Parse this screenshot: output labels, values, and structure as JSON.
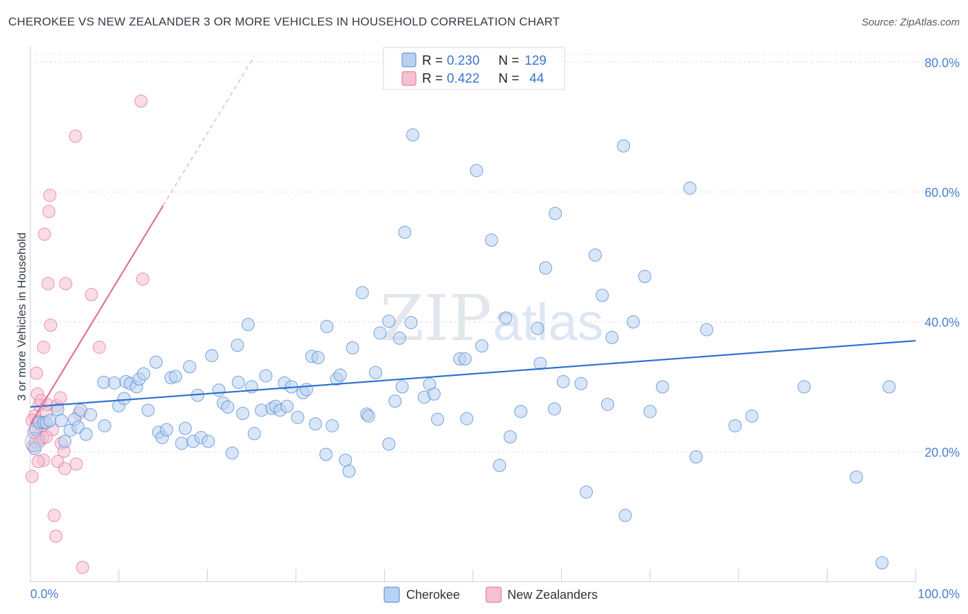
{
  "title": "CHEROKEE VS NEW ZEALANDER 3 OR MORE VEHICLES IN HOUSEHOLD CORRELATION CHART",
  "source": "Source: ZipAtlas.com",
  "watermark": {
    "zip": "ZIP",
    "atlas": "atlas"
  },
  "colors": {
    "blue": "#4a84d4",
    "blue_fill": "#b9d1f0",
    "pink": "#e0709a",
    "pink_fill": "#f5c0d2",
    "grid": "#d8dde3"
  },
  "legend": {
    "row1": {
      "r_label": "R =",
      "r_value": "0.230",
      "n_label": "N =",
      "n_value": "129"
    },
    "row2": {
      "r_label": "R =",
      "r_value": "0.422",
      "n_label": "N =",
      "n_value": "44"
    }
  },
  "bottom_legend": {
    "series1": "Cherokee",
    "series2": "New Zealanders"
  },
  "chart_data": {
    "type": "scatter",
    "title": "CHEROKEE VS NEW ZEALANDER 3 OR MORE VEHICLES IN HOUSEHOLD CORRELATION CHART",
    "xlabel": "",
    "ylabel": "3 or more Vehicles in Household",
    "xlim": [
      0,
      100
    ],
    "ylim": [
      0,
      83
    ],
    "x_tick_labels": [
      "0.0%",
      "100.0%"
    ],
    "y_ticks": [
      20,
      40,
      60,
      80
    ],
    "y_tick_labels": [
      "20.0%",
      "40.0%",
      "60.0%",
      "80.0%"
    ],
    "series": [
      {
        "name": "Cherokee",
        "color": "#4a84d4",
        "trend": {
          "x": [
            0,
            100
          ],
          "y": [
            26.9,
            37.1
          ]
        },
        "points": [
          [
            0.5,
            20.5
          ],
          [
            0.6,
            23.5
          ],
          [
            1.0,
            24.5
          ],
          [
            1.5,
            24.5
          ],
          [
            1.8,
            24.5
          ],
          [
            2.2,
            24.8
          ],
          [
            3.1,
            26.5
          ],
          [
            3.5,
            24.8
          ],
          [
            3.9,
            21.6
          ],
          [
            4.5,
            23.3
          ],
          [
            5.0,
            25.0
          ],
          [
            5.4,
            23.8
          ],
          [
            5.7,
            26.4
          ],
          [
            6.3,
            22.7
          ],
          [
            6.8,
            25.7
          ],
          [
            8.4,
            24.0
          ],
          [
            8.3,
            30.7
          ],
          [
            9.5,
            30.6
          ],
          [
            10.0,
            27.1
          ],
          [
            10.6,
            28.2
          ],
          [
            10.8,
            30.8
          ],
          [
            11.3,
            30.5
          ],
          [
            12.0,
            30.0
          ],
          [
            12.3,
            31.2
          ],
          [
            12.8,
            32.0
          ],
          [
            13.3,
            26.4
          ],
          [
            14.2,
            33.8
          ],
          [
            14.5,
            23.0
          ],
          [
            14.9,
            22.2
          ],
          [
            15.4,
            23.4
          ],
          [
            15.9,
            31.4
          ],
          [
            16.4,
            31.6
          ],
          [
            17.1,
            21.3
          ],
          [
            17.5,
            23.6
          ],
          [
            18.0,
            33.1
          ],
          [
            18.4,
            21.6
          ],
          [
            18.9,
            28.7
          ],
          [
            19.3,
            22.2
          ],
          [
            20.1,
            21.6
          ],
          [
            20.5,
            34.8
          ],
          [
            21.3,
            29.5
          ],
          [
            21.8,
            27.5
          ],
          [
            22.3,
            26.9
          ],
          [
            22.8,
            19.8
          ],
          [
            23.4,
            36.4
          ],
          [
            23.5,
            30.7
          ],
          [
            24.0,
            25.9
          ],
          [
            24.6,
            39.6
          ],
          [
            25.0,
            30.0
          ],
          [
            25.3,
            22.8
          ],
          [
            26.1,
            26.4
          ],
          [
            26.6,
            31.7
          ],
          [
            27.3,
            26.7
          ],
          [
            27.7,
            27.0
          ],
          [
            28.2,
            26.4
          ],
          [
            28.7,
            30.6
          ],
          [
            29.0,
            27.0
          ],
          [
            29.5,
            30.0
          ],
          [
            30.2,
            25.3
          ],
          [
            30.8,
            29.1
          ],
          [
            31.2,
            29.6
          ],
          [
            31.8,
            34.7
          ],
          [
            32.2,
            24.3
          ],
          [
            32.5,
            34.5
          ],
          [
            33.4,
            19.6
          ],
          [
            33.5,
            39.3
          ],
          [
            34.1,
            24.0
          ],
          [
            34.6,
            31.2
          ],
          [
            35.0,
            31.8
          ],
          [
            35.6,
            18.7
          ],
          [
            36.0,
            17.0
          ],
          [
            36.4,
            36.0
          ],
          [
            37.5,
            44.5
          ],
          [
            38.0,
            25.8
          ],
          [
            38.2,
            25.5
          ],
          [
            39.0,
            32.2
          ],
          [
            39.5,
            38.3
          ],
          [
            40.5,
            21.2
          ],
          [
            40.5,
            40.1
          ],
          [
            41.2,
            27.8
          ],
          [
            41.7,
            37.5
          ],
          [
            42.0,
            30.0
          ],
          [
            42.3,
            53.8
          ],
          [
            43.0,
            39.9
          ],
          [
            43.2,
            68.8
          ],
          [
            44.5,
            28.4
          ],
          [
            45.1,
            30.4
          ],
          [
            45.6,
            28.9
          ],
          [
            46.0,
            25.0
          ],
          [
            48.5,
            34.3
          ],
          [
            49.1,
            34.3
          ],
          [
            49.3,
            25.1
          ],
          [
            50.4,
            63.3
          ],
          [
            51.0,
            36.3
          ],
          [
            52.1,
            52.6
          ],
          [
            53.0,
            17.9
          ],
          [
            53.7,
            40.6
          ],
          [
            54.2,
            22.3
          ],
          [
            55.4,
            26.2
          ],
          [
            57.3,
            39.0
          ],
          [
            57.6,
            33.6
          ],
          [
            58.2,
            48.3
          ],
          [
            59.2,
            26.6
          ],
          [
            59.3,
            56.7
          ],
          [
            60.2,
            30.8
          ],
          [
            62.2,
            30.5
          ],
          [
            62.8,
            13.8
          ],
          [
            63.8,
            50.3
          ],
          [
            64.6,
            44.1
          ],
          [
            65.2,
            27.3
          ],
          [
            65.7,
            37.6
          ],
          [
            67.0,
            67.1
          ],
          [
            67.2,
            10.2
          ],
          [
            68.1,
            40.0
          ],
          [
            69.4,
            47.0
          ],
          [
            70.0,
            26.2
          ],
          [
            71.4,
            30.0
          ],
          [
            74.5,
            60.6
          ],
          [
            75.2,
            19.2
          ],
          [
            76.4,
            38.8
          ],
          [
            79.6,
            24.0
          ],
          [
            81.5,
            25.5
          ],
          [
            87.4,
            30.0
          ],
          [
            93.3,
            16.1
          ],
          [
            96.2,
            2.9
          ],
          [
            97.0,
            30.0
          ]
        ]
      },
      {
        "name": "New Zealanders",
        "color": "#e0709a",
        "trend": {
          "x": [
            0,
            15
          ],
          "y": [
            24.2,
            57.9
          ]
        },
        "trend_dashed": {
          "x": [
            15,
            25.3
          ],
          "y": [
            57.9,
            80.9
          ]
        },
        "points": [
          [
            0.2,
            16.2
          ],
          [
            0.3,
            20.9
          ],
          [
            0.5,
            25.5
          ],
          [
            0.6,
            21.6
          ],
          [
            0.7,
            32.1
          ],
          [
            0.8,
            28.9
          ],
          [
            0.9,
            24.7
          ],
          [
            1.0,
            27.2
          ],
          [
            1.0,
            22.8
          ],
          [
            1.1,
            21.7
          ],
          [
            1.2,
            27.9
          ],
          [
            1.3,
            24.0
          ],
          [
            1.4,
            22.2
          ],
          [
            1.5,
            18.7
          ],
          [
            1.5,
            36.1
          ],
          [
            1.6,
            53.5
          ],
          [
            1.8,
            25.9
          ],
          [
            1.9,
            27.3
          ],
          [
            2.0,
            45.9
          ],
          [
            2.1,
            57.0
          ],
          [
            2.2,
            59.5
          ],
          [
            2.3,
            39.5
          ],
          [
            2.5,
            23.4
          ],
          [
            2.7,
            10.2
          ],
          [
            2.9,
            7.0
          ],
          [
            3.0,
            27.1
          ],
          [
            3.1,
            18.5
          ],
          [
            3.4,
            28.3
          ],
          [
            3.5,
            21.3
          ],
          [
            3.8,
            20.1
          ],
          [
            3.9,
            17.4
          ],
          [
            4.0,
            45.9
          ],
          [
            5.1,
            68.6
          ],
          [
            5.2,
            18.1
          ],
          [
            5.5,
            25.9
          ],
          [
            5.9,
            2.2
          ],
          [
            6.9,
            44.2
          ],
          [
            7.8,
            36.1
          ],
          [
            12.5,
            74.0
          ],
          [
            12.7,
            46.6
          ],
          [
            0.2,
            24.8
          ],
          [
            0.4,
            23.0
          ],
          [
            0.9,
            18.5
          ],
          [
            1.8,
            22.3
          ]
        ]
      }
    ]
  }
}
